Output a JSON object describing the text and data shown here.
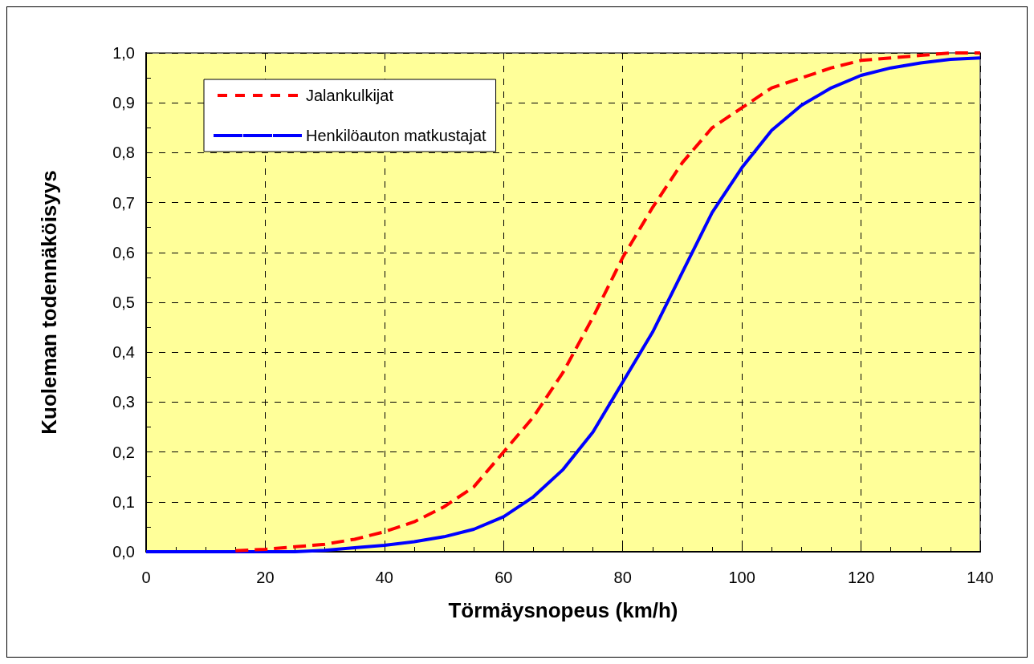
{
  "chart_data": {
    "type": "line",
    "xlabel": "Törmäysnopeus (km/h)",
    "ylabel": "Kuoleman todennäköisyys",
    "x": [
      0,
      5,
      10,
      15,
      20,
      25,
      30,
      35,
      40,
      45,
      50,
      55,
      60,
      65,
      70,
      75,
      80,
      85,
      90,
      95,
      100,
      105,
      110,
      115,
      120,
      125,
      130,
      135,
      140
    ],
    "series": [
      {
        "name": "Jalankulkijat",
        "color": "#ff0000",
        "line_style": "dashed",
        "values": [
          null,
          null,
          null,
          0.002,
          0.005,
          0.01,
          0.015,
          0.025,
          0.04,
          0.06,
          0.09,
          0.13,
          0.2,
          0.27,
          0.36,
          0.47,
          0.59,
          0.69,
          0.78,
          0.85,
          0.89,
          0.93,
          0.95,
          0.97,
          0.985,
          0.99,
          0.995,
          1.0,
          1.0
        ]
      },
      {
        "name": "Henkilöauton matkustajat",
        "color": "#0000ff",
        "line_style": "solid",
        "values": [
          0,
          0,
          0,
          0,
          0,
          0,
          0.003,
          0.008,
          0.013,
          0.02,
          0.03,
          0.045,
          0.07,
          0.11,
          0.165,
          0.24,
          0.34,
          0.44,
          0.56,
          0.68,
          0.77,
          0.845,
          0.895,
          0.93,
          0.955,
          0.97,
          0.98,
          0.987,
          0.99
        ]
      }
    ],
    "xlim": [
      0,
      140
    ],
    "xticks": [
      0,
      20,
      40,
      60,
      80,
      100,
      120,
      140
    ],
    "ylim": [
      0,
      1
    ],
    "yticks": [
      {
        "value": 0,
        "label": "0,0"
      },
      {
        "value": 0.1,
        "label": "0,1"
      },
      {
        "value": 0.2,
        "label": "0,2"
      },
      {
        "value": 0.3,
        "label": "0,3"
      },
      {
        "value": 0.4,
        "label": "0,4"
      },
      {
        "value": 0.5,
        "label": "0,5"
      },
      {
        "value": 0.6,
        "label": "0,6"
      },
      {
        "value": 0.7,
        "label": "0,7"
      },
      {
        "value": 0.8,
        "label": "0,8"
      },
      {
        "value": 0.9,
        "label": "0,9"
      },
      {
        "value": 1,
        "label": "1,0"
      }
    ],
    "grid": true,
    "legend": "top left",
    "marker": "none"
  }
}
